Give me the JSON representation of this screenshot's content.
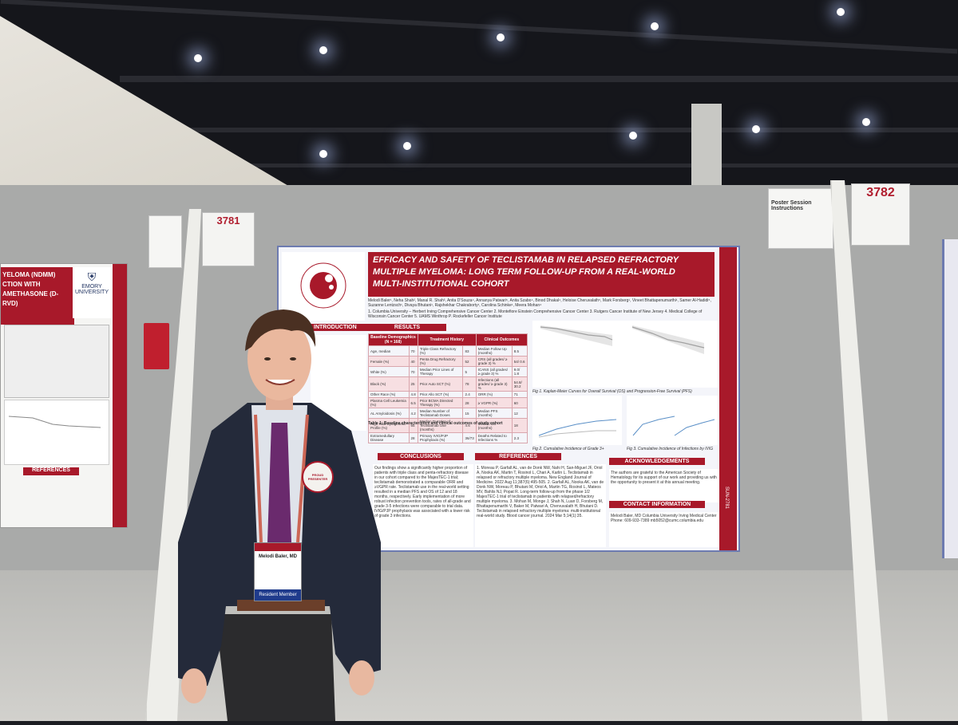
{
  "poster": {
    "title_line1": "EFFICACY AND SAFETY OF TECLISTAMAB IN RELAPSED REFRACTORY",
    "title_line2": "MULTIPLE MYELOMA: LONG TERM FOLLOW-UP FROM A REAL-WORLD",
    "title_line3": "MULTI-INSTITUTIONAL COHORT",
    "authors": "Melodi Baler¹, Neha Shah², Manal R. Shah³, Anita D'Souza⁴, Annanya Patwari⁵, Anita Szabo⁴, Binod Dhakal⁴, Heloise Cheruvalath⁵, Mark Forsberg¹, Vineet Bhattapenumarthi¹, Samer Al-Hadidi⁵, Suzanne Lentzsch¹, Divaya Bhutani¹, Rajshekhar Chakraborty¹, Carolina Schinke¹, Meera Mohan⁴",
    "affiliations": "1. Columbia University – Herbert Irving Comprehensive Cancer Center  2. Montefiore Einstein Comprehensive Cancer Center  3. Rutgers Cancer Institute of New Jersey  4. Medical College of Wisconsin Cancer Center  5. UAMS Winthrop P. Rockefeller Cancer Institute",
    "society": "AMERICAN SOCIETY OF HEMATOLOGY",
    "sections": {
      "introduction": "INTRODUCTION",
      "results": "RESULTS",
      "conclusions": "CONCLUSIONS",
      "references": "REFERENCES",
      "acknowledgements": "ACKNOWLEDGEMENTS",
      "contact": "CONTACT INFORMATION"
    },
    "table_headers": [
      "Baseline Demographics (N = 168)",
      "Treatment History",
      "Clinical Outcomes"
    ],
    "table_rows": [
      [
        "Age, median",
        "70",
        "Triple Class Refractory (%)",
        "83",
        "Median Follow Up (months)",
        "8.5"
      ],
      [
        "Female (%)",
        "40",
        "Penta Drug Refractory (%)",
        "52",
        "CRS (all grades/ ≥ grade 3) %",
        "54/ 0.6"
      ],
      [
        "White (%)",
        "70",
        "Median Prior Lines of Therapy",
        "5",
        "ICANS (all grades/ ≥ grade 3) %",
        "9.0/ 1.8"
      ],
      [
        "Black (%)",
        "25",
        "Prior Auto SCT (%)",
        "78",
        "Infections (all grades/ ≥ grade 3) %",
        "54.8/ 30.2"
      ],
      [
        "Other Race (%)",
        "4.8",
        "Prior Allo SCT (%)",
        "2.4",
        "ORR (%)",
        "71"
      ],
      [
        "Plasma Cell Leukemia (%)",
        "6.5",
        "Prior BCMA Directed Therapy (%)",
        "28",
        "≥ VGPR (%)",
        "60"
      ],
      [
        "AL Amyloidosis (%)",
        "4.2",
        "Median Number of Teclistamab Doses",
        "15",
        "Median PFS (months)",
        "12"
      ],
      [
        "High Risk Cytogenetic Profile (%)",
        "65",
        "Median Duration of Teclistamab Use (months)",
        "4.6",
        "Median OS (months)",
        "18"
      ],
      [
        "Extramedullary Disease",
        "28",
        "Primary IVIG/PJP Prophylaxis (%)",
        "36/73",
        "Deaths Related to Infections %",
        "2.3"
      ]
    ],
    "table_caption": "Table 1: Baseline characteristics and clinical outcomes of study cohort",
    "fig1_caption": "Fig 1. Kaplan-Meier Curves for Overall Survival (OS) and Progression-Free Survival (PFS)",
    "fig2_caption": "Fig 2. Cumulative Incidence of Grade 3+ Infections",
    "fig3_caption": "Fig 3. Cumulative Incidence of Infections by IVIG Use",
    "conclusions_text": "Our findings show a significantly higher proportion of patients with triple class and penta-refractory disease in our cohort compared to the MajesTEC-1 trial; teclistamab demonstrated a comparable ORR and ≥VGPR rate. Teclistamab use in the real-world setting resulted in a median PFS and OS of 12 and 18 months, respectively. Early implementation of more robust infection prevention tools, rates of all-grade and grade 3-5 infections were comparable to trial data. IVIG/PJP prophylaxis was associated with a lower risk of grade 3 infections.",
    "references_text": "1. Moreau P, Garfall AL, van de Donk NW, Nahi H, San-Miguel JF, Oriol A, Nooka AK, Martin T, Rosinol L, Chari A, Karlin L. Teclistamab in relapsed or refractory multiple myeloma. New England Journal of Medicine. 2022 Aug 11;387(6):495-505. 2. Garfall AL, Nooka AK, van de Donk NW, Moreau P, Bhutani M, Oriol A, Martin TG, Rosinol L, Mateos MV, Bahlis NJ, Popat R. Long-term follow-up from the phase 1/2 MajesTEC-1 trial of teclistamab in patients with relapsed/refractory multiple myeloma. 3. Mohan M, Monge J, Shah N, Luan D, Forsberg M, Bhattapenumarthi V, Baker M, Patwari A, Chervuvalath H, Bhutani D. Teclistamab in relapsed refractory multiple myeloma: multi-institutional real-world study. Blood cancer journal. 2024 Mar 5;14(1):35.",
    "acknowledgements_text": "The authors are grateful to the American Society of Hematology for its support of our work and providing us with the opportunity to present it at this annual meeting.",
    "contact_text": "Melodi Baler, MD  Columbia University Irving Medical Center  Phone: 609-933-7389  mb5052@cumc.columbia.edu",
    "board_code": "SUN-2781"
  },
  "left_poster": {
    "title_line1": "YELOMA (NDMM)",
    "title_line2": "CTION WITH",
    "title_line3": "AMETHASONE (D-RVD)",
    "logo_text": "EMORY UNIVERSITY",
    "references_label": "REFERENCES"
  },
  "signs": {
    "left_number": "3781",
    "right_number": "3782",
    "instructions_title": "Poster Session Instructions"
  },
  "badge": {
    "name": "Melodi Baler, MD",
    "type": "Resident Member",
    "button": "PROUD PRESENTER"
  },
  "colors": {
    "accent_red": "#a8192a",
    "poster_border": "#6d7bb0"
  }
}
